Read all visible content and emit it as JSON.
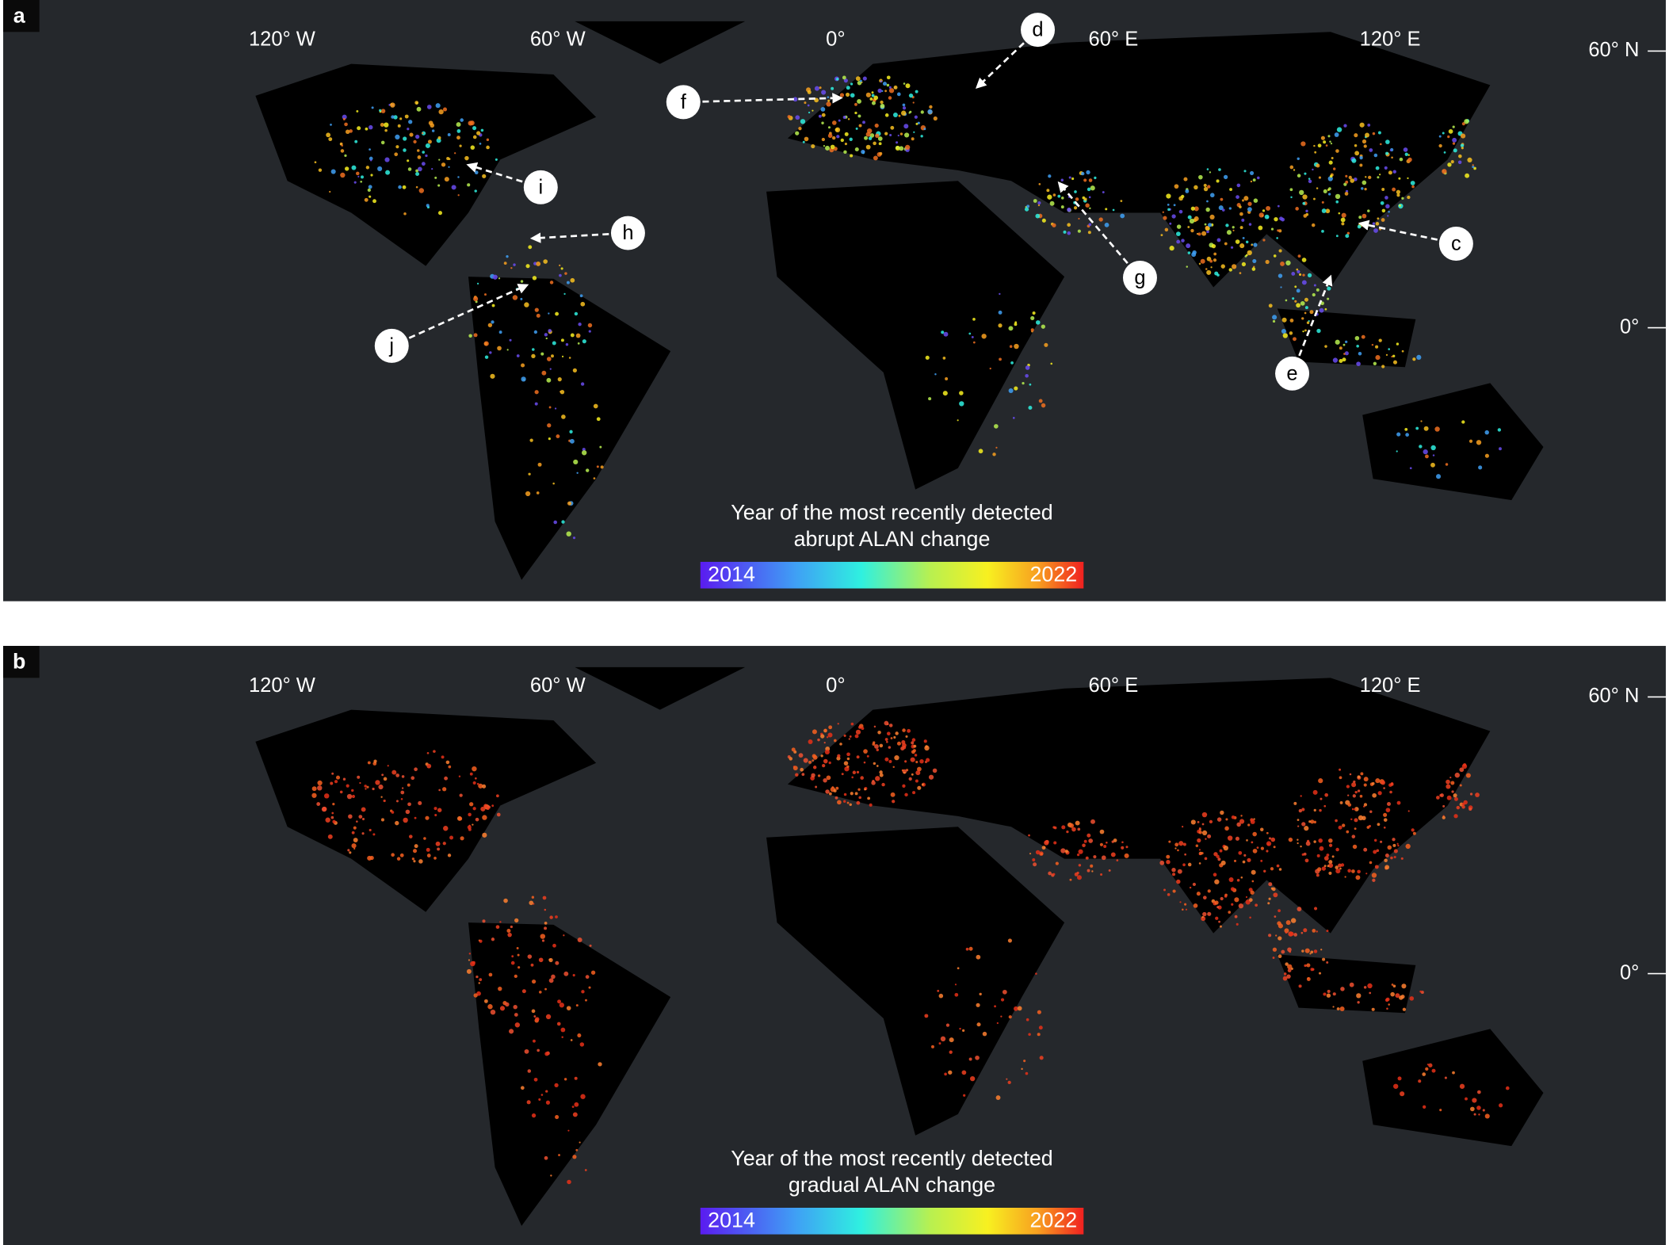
{
  "panels": [
    {
      "label": "a",
      "lon_labels": [
        "120° W",
        "60° W",
        "0°",
        "60° E",
        "120° E"
      ],
      "lat_labels": [
        "60° N",
        "0°"
      ],
      "legend": {
        "title": [
          "Year of the most recently detected",
          "abrupt ALAN change"
        ],
        "min": "2014",
        "max": "2022"
      },
      "callouts": [
        "c",
        "d",
        "e",
        "f",
        "g",
        "h",
        "i",
        "j"
      ]
    },
    {
      "label": "b",
      "lon_labels": [
        "120° W",
        "60° W",
        "0°",
        "60° E",
        "120° E"
      ],
      "lat_labels": [
        "60° N",
        "0°"
      ],
      "legend": {
        "title": [
          "Year of the most recently detected",
          "gradual ALAN change"
        ],
        "min": "2014",
        "max": "2022"
      }
    }
  ]
}
